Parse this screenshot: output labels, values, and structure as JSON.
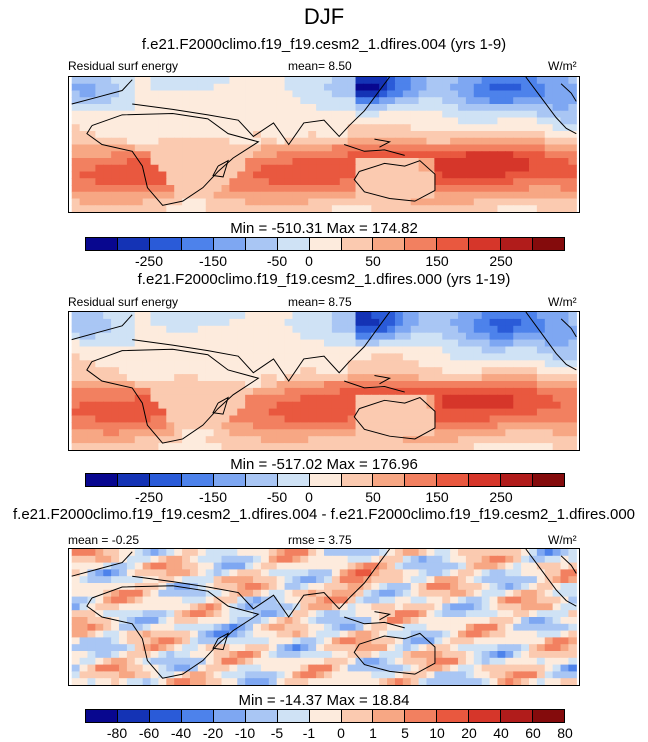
{
  "figure": {
    "season": "DJF"
  },
  "chart_data": [
    {
      "type": "heatmap",
      "title": "f.e21.F2000climo.f19_f19.cesm2_1.dfires.004 (yrs 1-9)",
      "variable_label": "Residual surf energy",
      "mean_label": "mean=  8.50",
      "units_label": "W/m²",
      "min_max_label": "Min = -510.31 Max = 174.82",
      "min": -510.31,
      "max": 174.82,
      "mean": 8.5,
      "colorbar_ticks": [
        "-250",
        "-150",
        "-50",
        "0",
        "50",
        "150",
        "250"
      ],
      "colorbar_levels": [
        -300,
        -250,
        -200,
        -150,
        -100,
        -50,
        -25,
        0,
        25,
        50,
        100,
        150,
        200,
        250,
        300
      ]
    },
    {
      "type": "heatmap",
      "title": "f.e21.F2000climo.f19_f19.cesm2_1.dfires.000 (yrs 1-19)",
      "variable_label": "Residual surf energy",
      "mean_label": "mean=  8.75",
      "units_label": "W/m²",
      "min_max_label": "Min = -517.02 Max = 176.96",
      "min": -517.02,
      "max": 176.96,
      "mean": 8.75,
      "colorbar_ticks": [
        "-250",
        "-150",
        "-50",
        "0",
        "50",
        "150",
        "250"
      ],
      "colorbar_levels": [
        -300,
        -250,
        -200,
        -150,
        -100,
        -50,
        -25,
        0,
        25,
        50,
        100,
        150,
        200,
        250,
        300
      ]
    },
    {
      "type": "heatmap",
      "title": "f.e21.F2000climo.f19_f19.cesm2_1.dfires.004 - f.e21.F2000climo.f19_f19.cesm2_1.dfires.000",
      "mean_label": "mean =  -0.25",
      "rmse_label": "rmse =  3.75",
      "units_label": "W/m²",
      "min_max_label": "Min = -14.37 Max =  18.84",
      "min": -14.37,
      "max": 18.84,
      "mean": -0.25,
      "rmse": 3.75,
      "colorbar_ticks": [
        "-80",
        "-60",
        "-40",
        "-20",
        "-10",
        "-5",
        "-1",
        "0",
        "1",
        "5",
        "10",
        "20",
        "40",
        "60",
        "80"
      ]
    }
  ],
  "colors": {
    "palette": [
      "#08078f",
      "#1433b5",
      "#2a5bd8",
      "#4d82eb",
      "#7ea7f2",
      "#a9c6f4",
      "#cfe2f5",
      "#fdebdd",
      "#fbcab0",
      "#f7a784",
      "#f28060",
      "#e9583f",
      "#d6362a",
      "#b11c1b",
      "#840b0c"
    ],
    "coast": "#000000"
  }
}
